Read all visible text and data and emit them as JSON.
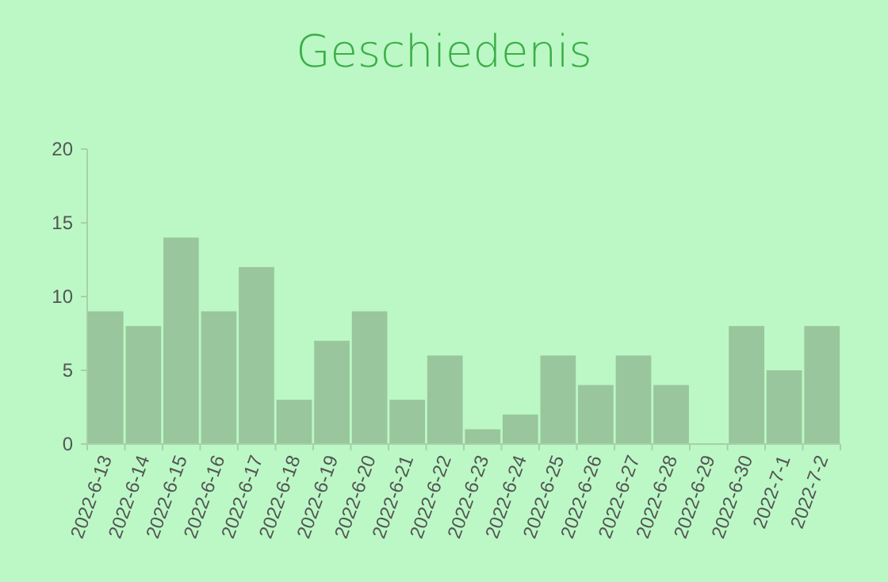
{
  "chart_data": {
    "type": "bar",
    "title": "Geschiedenis",
    "categories": [
      "2022-6-13",
      "2022-6-14",
      "2022-6-15",
      "2022-6-16",
      "2022-6-17",
      "2022-6-18",
      "2022-6-19",
      "2022-6-20",
      "2022-6-21",
      "2022-6-22",
      "2022-6-23",
      "2022-6-24",
      "2022-6-25",
      "2022-6-26",
      "2022-6-27",
      "2022-6-28",
      "2022-6-29",
      "2022-6-30",
      "2022-7-1",
      "2022-7-2"
    ],
    "values": [
      9,
      8,
      14,
      9,
      12,
      3,
      7,
      9,
      3,
      6,
      1,
      2,
      6,
      4,
      6,
      4,
      0,
      8,
      5,
      8
    ],
    "color": "#99c69c",
    "ylim": [
      0,
      20
    ],
    "yticks": [
      0,
      5,
      10,
      15,
      20
    ],
    "grid": false
  }
}
